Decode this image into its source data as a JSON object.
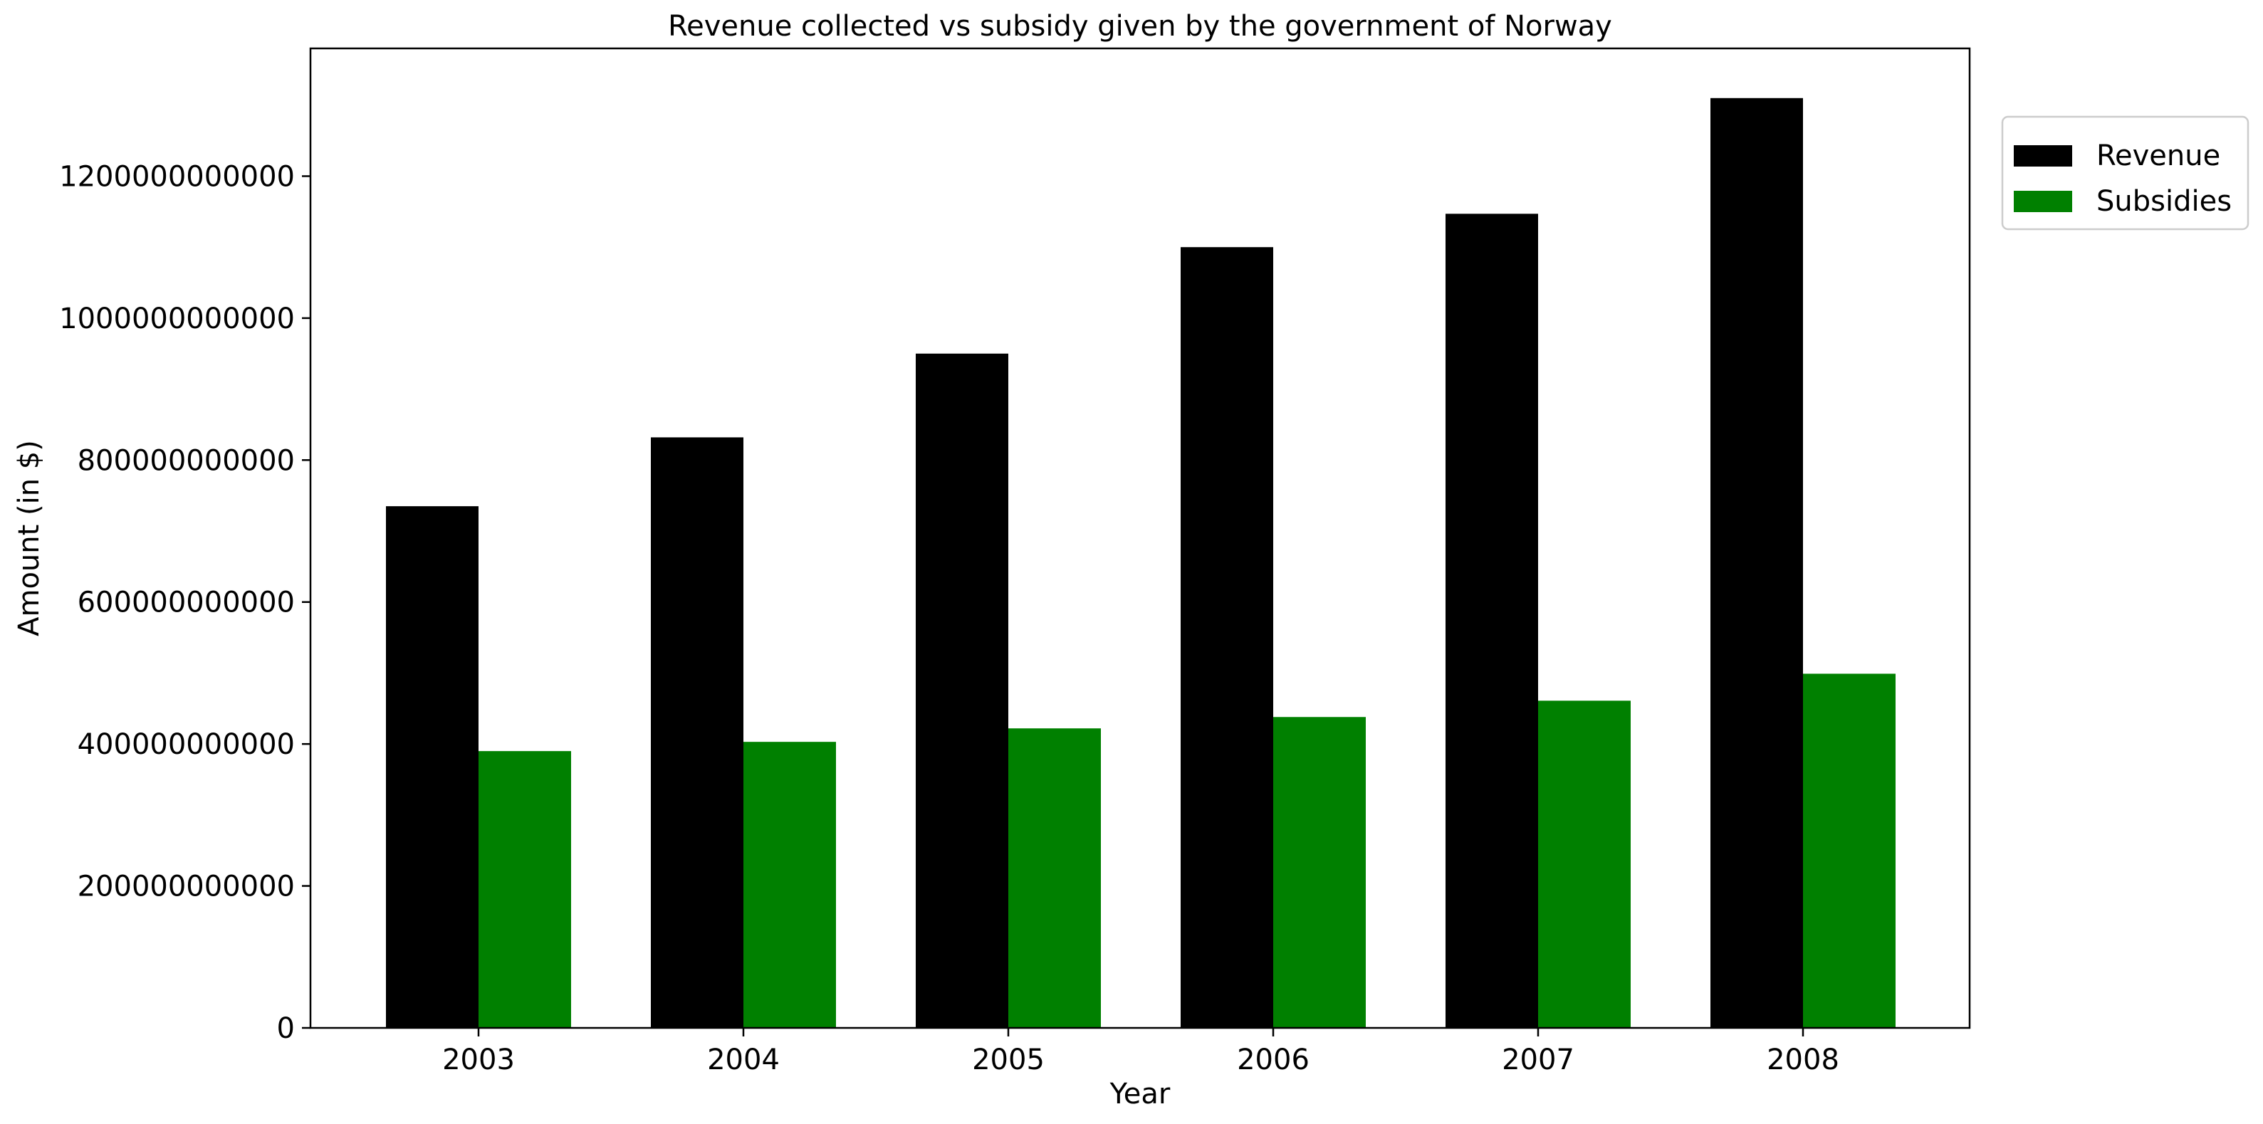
{
  "chart_data": {
    "type": "bar",
    "title": "Revenue collected vs subsidy given by the government of Norway",
    "xlabel": "Year",
    "ylabel": "Amount (in $)",
    "categories": [
      "2003",
      "2004",
      "2005",
      "2006",
      "2007",
      "2008"
    ],
    "series": [
      {
        "name": "Revenue",
        "color": "#000000",
        "values": [
          735000000000,
          832000000000,
          950000000000,
          1100000000000,
          1147000000000,
          1310000000000
        ]
      },
      {
        "name": "Subsidies",
        "color": "#008000",
        "values": [
          390000000000,
          403000000000,
          422000000000,
          438000000000,
          461000000000,
          499000000000
        ]
      }
    ],
    "ylim": [
      0,
      1380000000000
    ],
    "yticks": [
      0,
      200000000000,
      400000000000,
      600000000000,
      800000000000,
      1000000000000,
      1200000000000
    ],
    "ytick_labels": [
      "0",
      "200000000000",
      "400000000000",
      "600000000000",
      "800000000000",
      "1000000000000",
      "1200000000000"
    ],
    "grid": false,
    "legend_position": "outside-top-right"
  }
}
